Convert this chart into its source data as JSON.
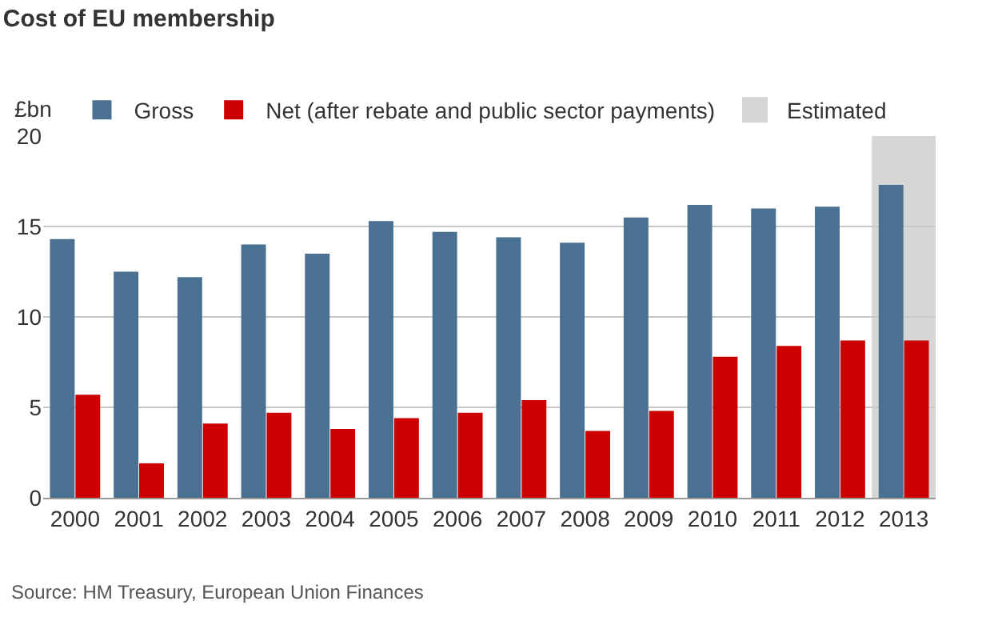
{
  "chart_data": {
    "type": "bar",
    "title": "Cost of EU membership",
    "ylabel": "£bn",
    "categories": [
      "2000",
      "2001",
      "2002",
      "2003",
      "2004",
      "2005",
      "2006",
      "2007",
      "2008",
      "2009",
      "2010",
      "2011",
      "2012",
      "2013"
    ],
    "series": [
      {
        "name": "Gross",
        "color": "#4a7191",
        "values": [
          14.3,
          12.5,
          12.2,
          14.0,
          13.5,
          15.3,
          14.7,
          14.4,
          14.1,
          15.5,
          16.2,
          16.0,
          16.1,
          17.3
        ]
      },
      {
        "name": "Net (after rebate and public sector payments)",
        "color": "#cc0000",
        "values": [
          5.7,
          1.9,
          4.1,
          4.7,
          3.8,
          4.4,
          4.7,
          5.4,
          3.7,
          4.8,
          7.8,
          8.4,
          8.7,
          8.7
        ]
      }
    ],
    "bands": [
      {
        "axis": "x",
        "from": "2013",
        "to": "2013",
        "label": "Estimated",
        "color": "#d6d6d6"
      }
    ],
    "ylim": [
      0,
      20
    ],
    "yticks": [
      0,
      5,
      10,
      15,
      20
    ],
    "grid": "y",
    "legend": "top",
    "annotations": [
      "Source: HM Treasury, European Union Finances"
    ]
  }
}
